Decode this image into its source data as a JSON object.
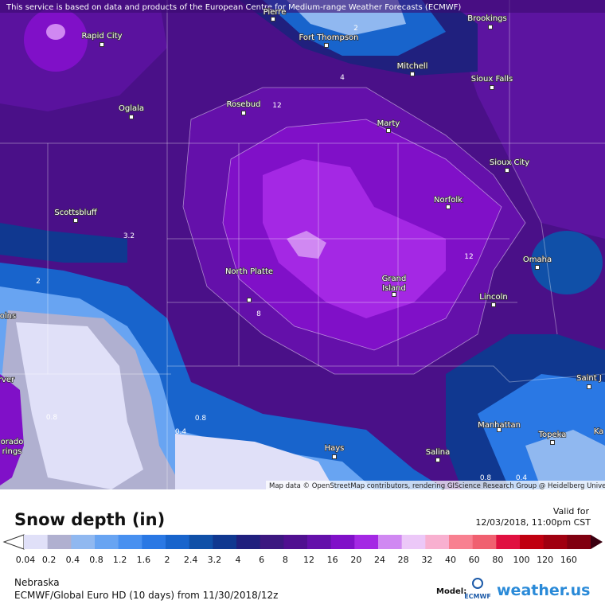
{
  "header": {
    "attribution": "This service is based on data and products of the European Centre for Medium-range Weather Forecasts (ECMWF)"
  },
  "map": {
    "cities": [
      {
        "lines": [
          "Pierre"
        ]
      },
      {
        "lines": [
          "Fort Thompson"
        ]
      },
      {
        "lines": [
          "Brookings"
        ]
      },
      {
        "lines": [
          "Rapid City"
        ]
      },
      {
        "lines": [
          "Mitchell"
        ]
      },
      {
        "lines": [
          "Sioux Falls"
        ]
      },
      {
        "lines": [
          "Oglala"
        ]
      },
      {
        "lines": [
          "Rosebud"
        ]
      },
      {
        "lines": [
          "Marty"
        ]
      },
      {
        "lines": [
          "Sioux City"
        ]
      },
      {
        "lines": [
          "Norfolk"
        ]
      },
      {
        "lines": [
          "Scottsbluff"
        ]
      },
      {
        "lines": [
          "North Platte"
        ]
      },
      {
        "lines": [
          "Grand",
          "Island"
        ]
      },
      {
        "lines": [
          "Omaha"
        ]
      },
      {
        "lines": [
          "Lincoln"
        ]
      },
      {
        "lines": [
          "Hays"
        ]
      },
      {
        "lines": [
          "Salina"
        ]
      },
      {
        "lines": [
          "Manhattan"
        ]
      },
      {
        "lines": [
          "Topeka"
        ]
      },
      {
        "lines": [
          "Saint J"
        ]
      },
      {
        "lines": [
          "Ka"
        ]
      },
      {
        "lines": [
          "olns"
        ]
      },
      {
        "lines": [
          "rver"
        ]
      },
      {
        "lines": [
          "orado",
          "rings"
        ]
      }
    ],
    "contour_labels": [
      "2",
      "12",
      "12",
      "8",
      "3.2",
      "0.8",
      "0.8",
      "0.4",
      "0.8",
      "0.4",
      "4",
      "2"
    ],
    "attribution": "Map data © OpenStreetMap contributors, rendering GIScience Research Group @ Heidelberg University"
  },
  "legend": {
    "title": "Snow depth (in)",
    "valid_label": "Valid for",
    "valid_time": "12/03/2018, 11:00pm CST",
    "bins": [
      {
        "label": "0.04",
        "color": "#e0e0f8"
      },
      {
        "label": "0.2",
        "color": "#b0b0d0"
      },
      {
        "label": "0.4",
        "color": "#90b8f0"
      },
      {
        "label": "0.8",
        "color": "#68a4f2"
      },
      {
        "label": "1.2",
        "color": "#4890f0"
      },
      {
        "label": "1.6",
        "color": "#2a78e4"
      },
      {
        "label": "2",
        "color": "#1864cc"
      },
      {
        "label": "2.4",
        "color": "#1050a8"
      },
      {
        "label": "3.2",
        "color": "#103890"
      },
      {
        "label": "4",
        "color": "#20207e"
      },
      {
        "label": "6",
        "color": "#3c1880"
      },
      {
        "label": "8",
        "color": "#501090"
      },
      {
        "label": "12",
        "color": "#6410aa"
      },
      {
        "label": "16",
        "color": "#8010c8"
      },
      {
        "label": "20",
        "color": "#a428e4"
      },
      {
        "label": "24",
        "color": "#d088f2"
      },
      {
        "label": "28",
        "color": "#ecc8f8"
      },
      {
        "label": "32",
        "color": "#f8b0d0"
      },
      {
        "label": "40",
        "color": "#f88090"
      },
      {
        "label": "60",
        "color": "#f06070"
      },
      {
        "label": "80",
        "color": "#e01040"
      },
      {
        "label": "100",
        "color": "#c00010"
      },
      {
        "label": "120",
        "color": "#a00010"
      },
      {
        "label": "160",
        "color": "#800010"
      }
    ]
  },
  "footer": {
    "region": "Nebraska",
    "model_run": "ECMWF/Global Euro HD (10 days) from 11/30/2018/12z",
    "model_label": "Model:",
    "model_logo": "ECMWF",
    "brand": "weather.us"
  }
}
